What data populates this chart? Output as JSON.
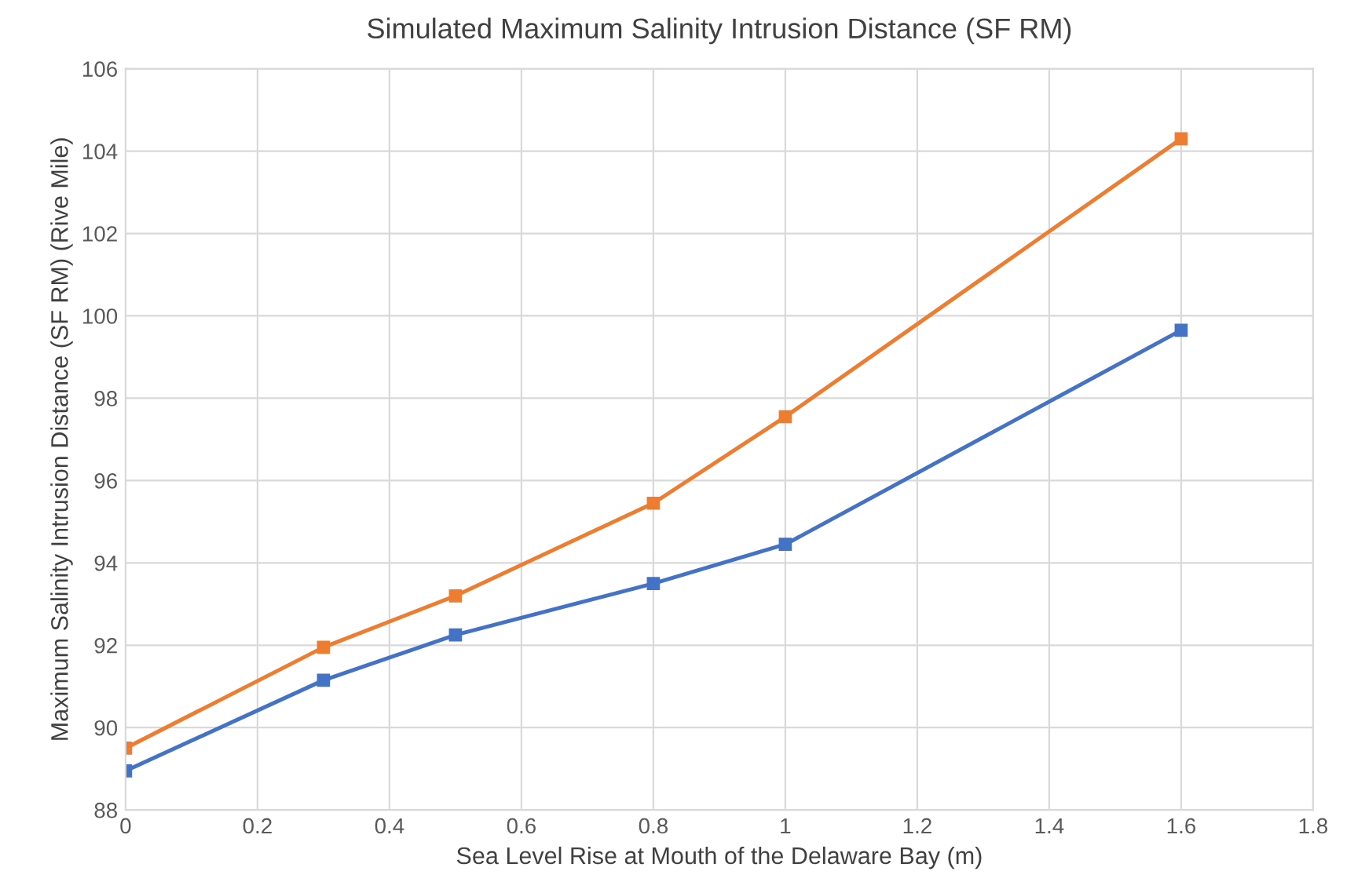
{
  "chart_data": {
    "type": "line",
    "title": "Simulated Maximum Salinity Intrusion Distance (SF RM)",
    "xlabel": "Sea Level Rise at Mouth of the Delaware Bay (m)",
    "ylabel": "Maximum Salinity Intrusion Distance (SF RM) (Rive Mile)",
    "x": [
      0,
      0.3,
      0.5,
      0.8,
      1,
      1.6
    ],
    "series": [
      {
        "color": "#4472c4",
        "values": [
          88.95,
          91.15,
          92.25,
          93.5,
          94.45,
          99.65
        ]
      },
      {
        "color": "#ed7d31",
        "values": [
          89.5,
          91.95,
          93.2,
          95.45,
          97.55,
          104.3
        ]
      }
    ],
    "xlim": [
      0,
      1.8
    ],
    "xticks": [
      0,
      0.2,
      0.4,
      0.6,
      0.8,
      1,
      1.2,
      1.4,
      1.6,
      1.8
    ],
    "ylim": [
      88,
      106
    ],
    "yticks": [
      88,
      90,
      92,
      94,
      96,
      98,
      100,
      102,
      104,
      106
    ],
    "grid": true,
    "marker": "square",
    "line_style": "solid"
  }
}
